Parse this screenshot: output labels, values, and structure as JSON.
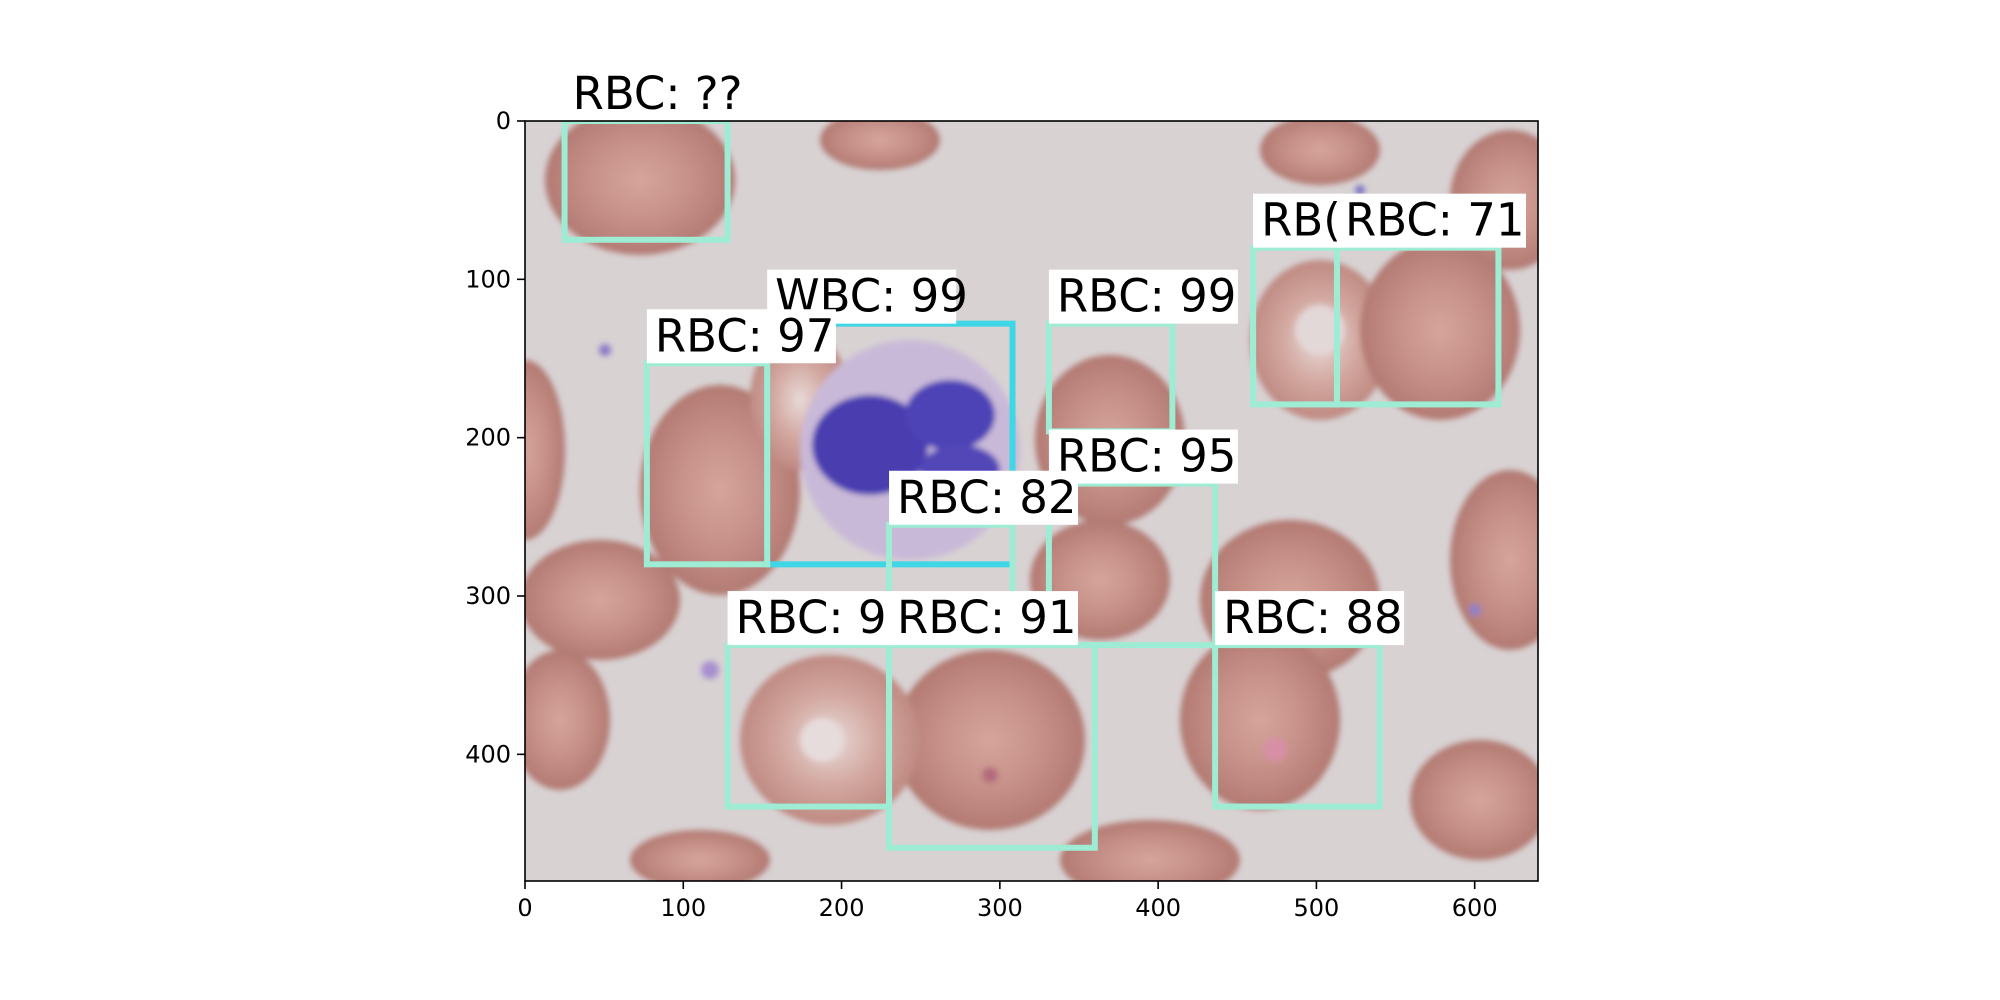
{
  "image": {
    "description_colors": {
      "background": "#d9d3d4",
      "rbc_fill": "#c48e86",
      "rbc_edge": "#b0766f",
      "wbc_nucleus": "#4b3fb0",
      "wbc_cytoplasm": "#c7b6d6"
    }
  },
  "axes": {
    "x_ticks": [
      "0",
      "100",
      "200",
      "300",
      "400",
      "500",
      "600"
    ],
    "y_ticks": [
      "0",
      "100",
      "200",
      "300",
      "400"
    ],
    "xlim": [
      0,
      640
    ],
    "ylim": [
      480,
      0
    ]
  },
  "detections": [
    {
      "cls": "RBC",
      "label": "RBC: ??",
      "x1": 25,
      "y1": 0,
      "x2": 128,
      "y2": 75,
      "color": "#9eecd4"
    },
    {
      "cls": "RBC",
      "label": "RBC: 71",
      "x1": 460,
      "y1": 80,
      "x2": 513,
      "y2": 179,
      "color": "#9eecd4",
      "display": "RB("
    },
    {
      "cls": "RBC",
      "label": "RBC: 71",
      "x1": 513,
      "y1": 80,
      "x2": 615,
      "y2": 179,
      "color": "#9eecd4"
    },
    {
      "cls": "RBC",
      "label": "RBC: 99",
      "x1": 331,
      "y1": 128,
      "x2": 409,
      "y2": 196,
      "color": "#9eecd4"
    },
    {
      "cls": "WBC",
      "label": "WBC: 99",
      "x1": 153,
      "y1": 128,
      "x2": 308,
      "y2": 280,
      "color": "#3fd6e6"
    },
    {
      "cls": "RBC",
      "label": "RBC: 97",
      "x1": 77,
      "y1": 153,
      "x2": 153,
      "y2": 280,
      "color": "#9eecd4"
    },
    {
      "cls": "RBC",
      "label": "RBC: 95",
      "x1": 331,
      "y1": 229,
      "x2": 436,
      "y2": 331,
      "color": "#9eecd4"
    },
    {
      "cls": "RBC",
      "label": "RBC: 82",
      "x1": 230,
      "y1": 255,
      "x2": 308,
      "y2": 331,
      "color": "#9eecd4"
    },
    {
      "cls": "RBC",
      "label": "RBC: 9",
      "x1": 128,
      "y1": 331,
      "x2": 230,
      "y2": 433,
      "color": "#9eecd4"
    },
    {
      "cls": "RBC",
      "label": "RBC: 91",
      "x1": 230,
      "y1": 331,
      "x2": 360,
      "y2": 459,
      "color": "#9eecd4"
    },
    {
      "cls": "RBC",
      "label": "RBC: 88",
      "x1": 436,
      "y1": 331,
      "x2": 540,
      "y2": 433,
      "color": "#9eecd4"
    }
  ]
}
